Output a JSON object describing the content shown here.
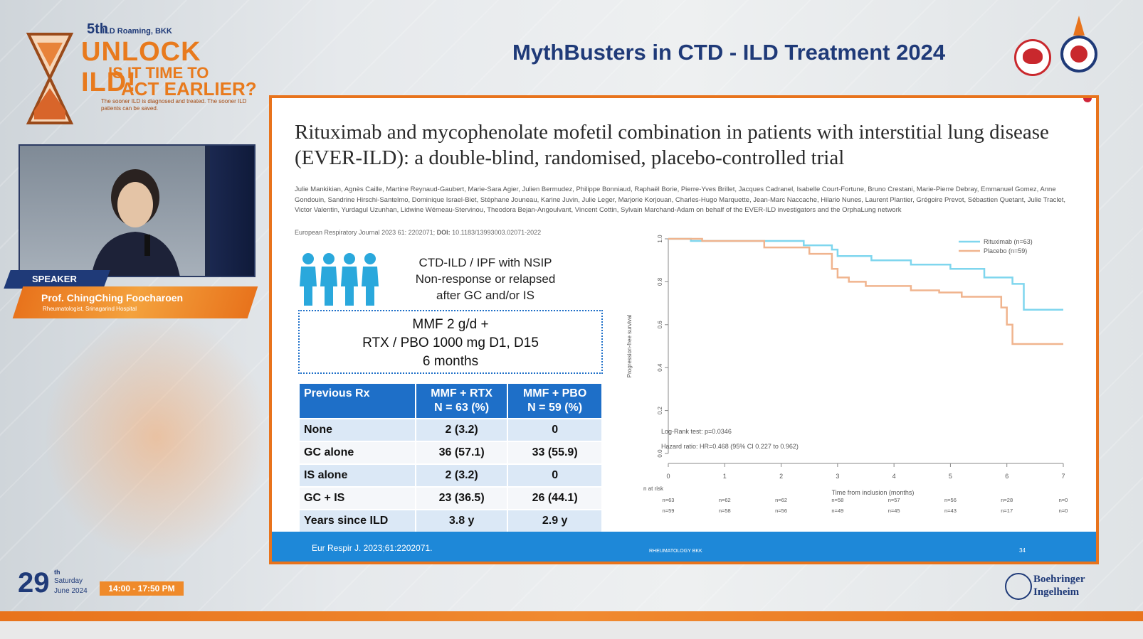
{
  "event": {
    "edition": "5th",
    "subtitle": "ILD Roaming, BKK",
    "title": "UNLOCK ILD!",
    "question_1": "IS IT TIME TO",
    "question_2": "ACT EARLIER?",
    "tagline": "The sooner ILD is diagnosed and treated. The sooner ILD patients can be saved.",
    "date_day": "29",
    "date_suffix": "th",
    "date_weekday": "Saturday",
    "date_month": "June 2024",
    "time": "14:00 - 17:50 PM"
  },
  "speaker": {
    "tag": "SPEAKER",
    "name": "Prof. ChingChing Foocharoen",
    "affiliation": "Rheumatologist, Srinagarind Hospital"
  },
  "header": {
    "title": "MythBusters in CTD - ILD Treatment 2024"
  },
  "sponsor": {
    "line1": "Boehringer",
    "line2": "Ingelheim"
  },
  "slide": {
    "paper_title": "Rituximab and mycophenolate mofetil combination in patients with interstitial lung disease (EVER-ILD): a double-blind, randomised, placebo-controlled trial",
    "authors": "Julie Mankikian, Agnès Caille, Martine Reynaud-Gaubert, Marie-Sara Agier, Julien Bermudez, Philippe Bonniaud, Raphaël Borie, Pierre-Yves Brillet, Jacques Cadranel, Isabelle Court-Fortune, Bruno Crestani, Marie-Pierre Debray, Emmanuel Gomez, Anne Gondouin, Sandrine Hirschi-Santelmo, Dominique Israel-Biet, Stéphane Jouneau, Karine Juvin, Julie Leger, Marjorie Korjouan, Charles-Hugo Marquette, Jean-Marc Naccache, Hilario Nunes, Laurent Plantier, Grégoire Prevot, Sébastien Quetant, Julie Traclet, Victor Valentin, Yurdagul Uzunhan, Lidwine Wémeau-Stervinou, Theodora Bejan-Angoulvant, Vincent Cottin, Sylvain Marchand-Adam on behalf of the EVER-ILD investigators and the OrphaLung network",
    "journal": "European Respiratory Journal 2023 61: 2202071;",
    "doi_label": "DOI:",
    "doi": "10.1183/13993003.02071-2022",
    "population_lines": [
      "CTD-ILD / IPF with NSIP",
      "Non-response or relapsed",
      "after GC and/or IS"
    ],
    "dose_lines": [
      "MMF 2 g/d +",
      "RTX / PBO 1000 mg D1, D15",
      "6 months"
    ],
    "table": {
      "headers": [
        [
          "Previous Rx",
          ""
        ],
        [
          "MMF + RTX",
          "N = 63 (%)"
        ],
        [
          "MMF + PBO",
          "N = 59 (%)"
        ]
      ],
      "rows": [
        [
          "None",
          "2 (3.2)",
          "0"
        ],
        [
          "GC alone",
          "36 (57.1)",
          "33 (55.9)"
        ],
        [
          "IS alone",
          "2 (3.2)",
          "0"
        ],
        [
          "GC + IS",
          "23 (36.5)",
          "26 (44.1)"
        ],
        [
          "Years since ILD",
          "3.8 y",
          "2.9 y"
        ]
      ]
    },
    "footer_ref": "Eur Respir J. 2023;61:2202071.",
    "footer_mid": "RHEUMATOLOGY BKK",
    "footer_page": "34"
  },
  "colors": {
    "navy": "#1f3a78",
    "orange": "#e8731c",
    "blue": "#1e6fc8",
    "rituximab": "#7fd6ee",
    "placebo": "#f0b48e"
  },
  "chart_data": {
    "type": "line",
    "title": "",
    "xlabel": "Time from inclusion (months)",
    "ylabel": "Progression-free survival",
    "xlim": [
      0,
      7
    ],
    "ylim": [
      0,
      1.0
    ],
    "x_ticks": [
      "0",
      "1",
      "2",
      "3",
      "4",
      "5",
      "6",
      "7"
    ],
    "y_ticks": [
      "0.0",
      "0.2",
      "0.4",
      "0.6",
      "0.8",
      "1.0"
    ],
    "legend": [
      "Rituximab (n=63)",
      "Placebo (n=59)"
    ],
    "legend_position": "top-right",
    "annotations": [
      "Log-Rank test: p=0.0346",
      "Hazard ratio: HR=0.468 (95% CI 0.227 to 0.962)"
    ],
    "series": [
      {
        "name": "Rituximab (n=63)",
        "x": [
          0,
          0.4,
          0.4,
          2.4,
          2.4,
          2.9,
          2.9,
          3.0,
          3.0,
          3.6,
          3.6,
          4.3,
          4.3,
          5.0,
          5.0,
          5.6,
          5.6,
          6.1,
          6.1,
          6.3,
          6.3,
          7.0
        ],
        "y": [
          1.0,
          1.0,
          0.99,
          0.99,
          0.97,
          0.97,
          0.95,
          0.95,
          0.92,
          0.92,
          0.9,
          0.9,
          0.88,
          0.88,
          0.86,
          0.86,
          0.82,
          0.82,
          0.79,
          0.79,
          0.67,
          0.67
        ]
      },
      {
        "name": "Placebo (n=59)",
        "x": [
          0,
          0.6,
          0.6,
          1.7,
          1.7,
          2.5,
          2.5,
          2.9,
          2.9,
          3.0,
          3.0,
          3.2,
          3.2,
          3.5,
          3.5,
          4.3,
          4.3,
          4.8,
          4.8,
          5.2,
          5.2,
          5.9,
          5.9,
          6.0,
          6.0,
          6.1,
          6.1,
          7.0
        ],
        "y": [
          1.0,
          1.0,
          0.99,
          0.99,
          0.96,
          0.96,
          0.93,
          0.93,
          0.86,
          0.86,
          0.82,
          0.82,
          0.8,
          0.8,
          0.78,
          0.78,
          0.76,
          0.76,
          0.75,
          0.75,
          0.73,
          0.73,
          0.68,
          0.68,
          0.6,
          0.6,
          0.51,
          0.51
        ]
      }
    ],
    "at_risk_label": "n at risk",
    "at_risk": {
      "rituximab": [
        "n=63",
        "n=62",
        "n=62",
        "n=58",
        "n=57",
        "n=56",
        "n=28",
        "n=0"
      ],
      "placebo": [
        "n=59",
        "n=58",
        "n=56",
        "n=49",
        "n=45",
        "n=43",
        "n=17",
        "n=0"
      ]
    }
  }
}
